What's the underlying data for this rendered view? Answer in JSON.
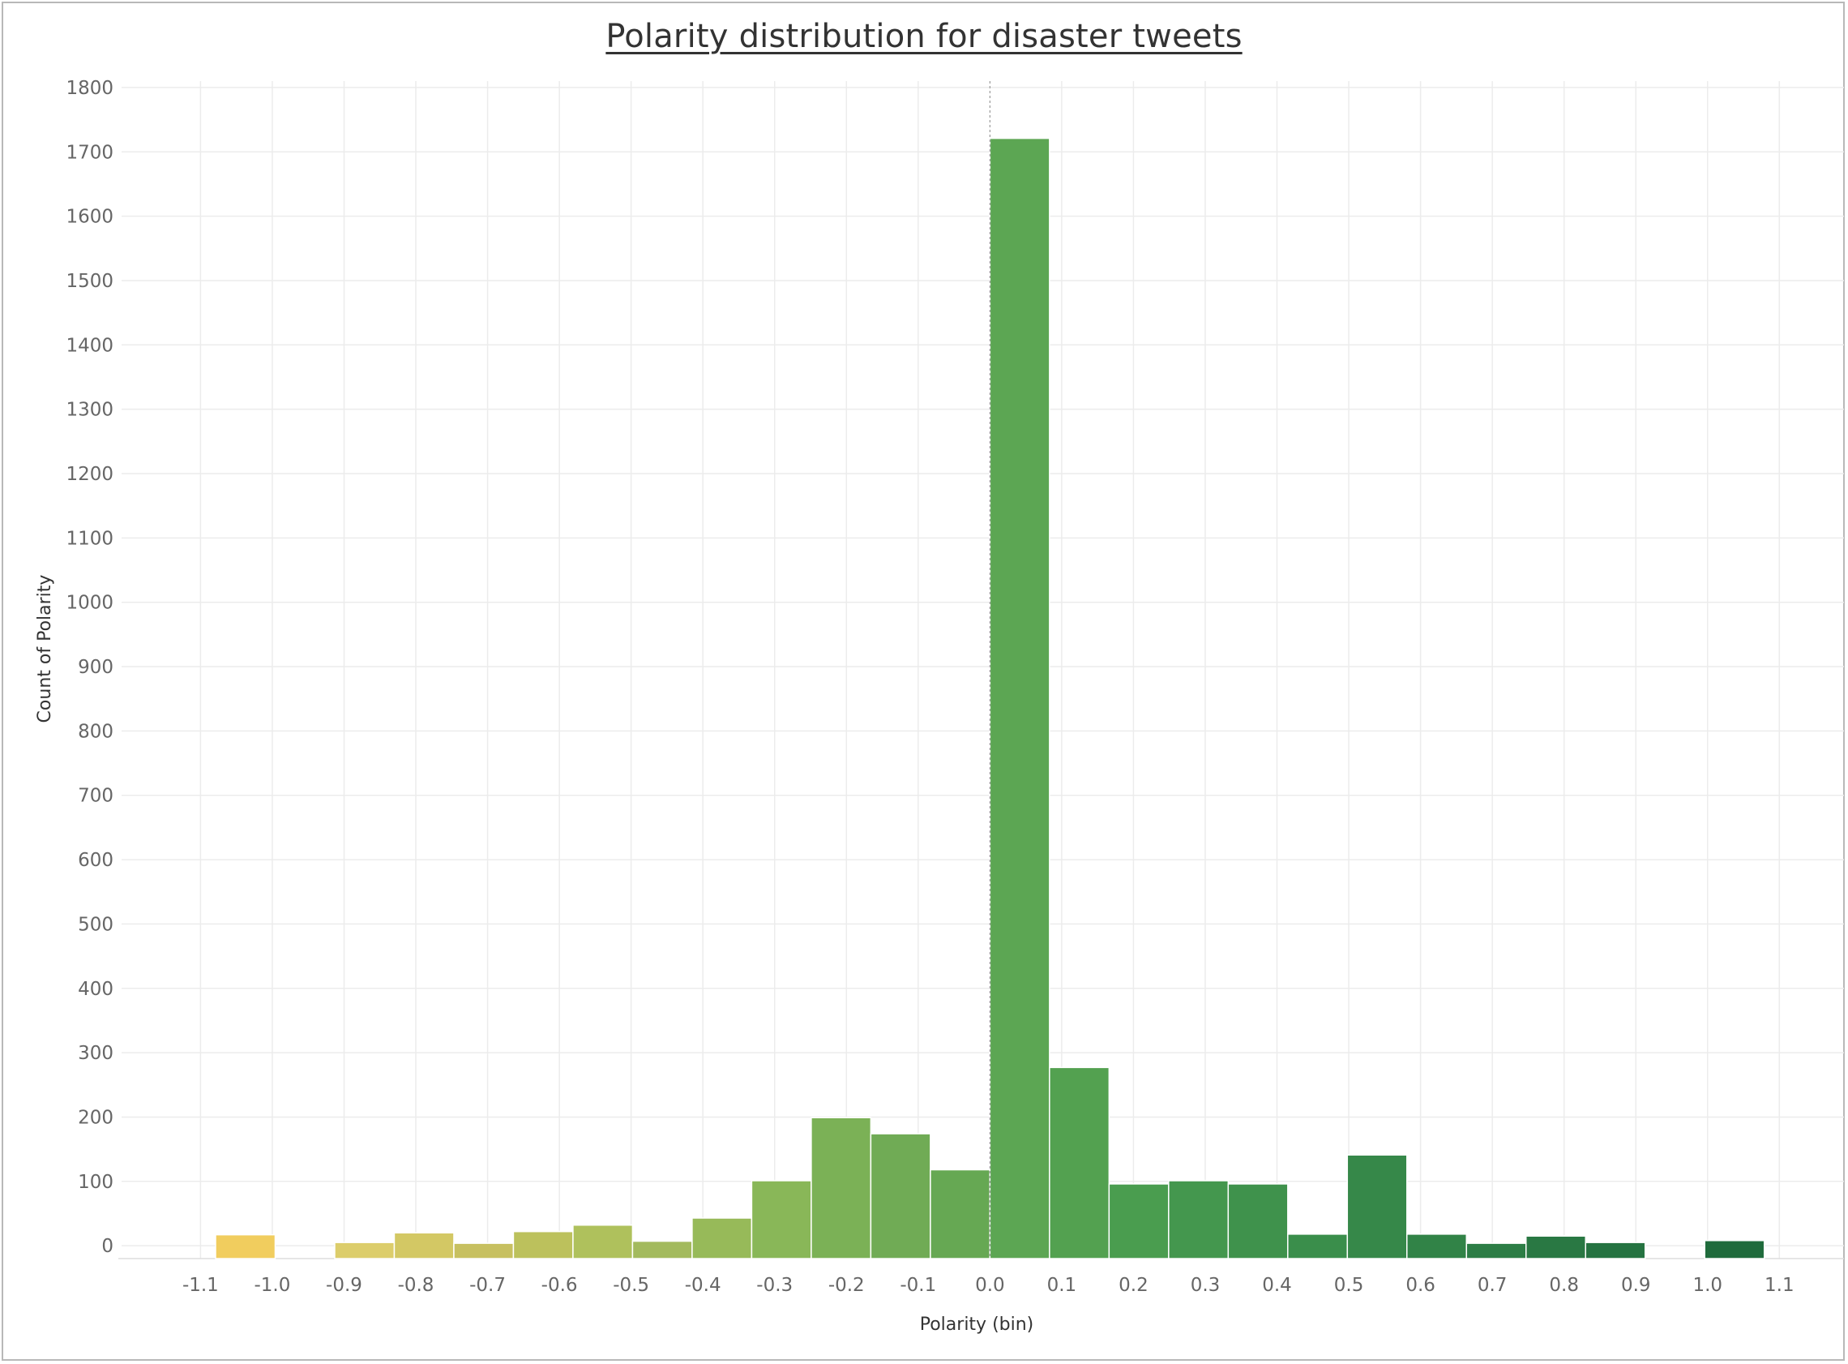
{
  "chart_data": {
    "type": "bar",
    "title": "Polarity distribution for disaster tweets",
    "xlabel": "Polarity (bin)",
    "ylabel": "Count of Polarity",
    "bin_size": 0.083,
    "bins": [
      {
        "x0": -1.079,
        "count": 17,
        "color": "#f1cd5e"
      },
      {
        "x0": -0.913,
        "count": 5,
        "color": "#dccd6b"
      },
      {
        "x0": -0.83,
        "count": 20,
        "color": "#d3c864"
      },
      {
        "x0": -0.747,
        "count": 3,
        "color": "#c7c060"
      },
      {
        "x0": -0.664,
        "count": 22,
        "color": "#bcc15c"
      },
      {
        "x0": -0.581,
        "count": 32,
        "color": "#afc15c"
      },
      {
        "x0": -0.498,
        "count": 7,
        "color": "#a3ba5d"
      },
      {
        "x0": -0.415,
        "count": 43,
        "color": "#97ba59"
      },
      {
        "x0": -0.332,
        "count": 101,
        "color": "#89b758"
      },
      {
        "x0": -0.249,
        "count": 199,
        "color": "#7bb156"
      },
      {
        "x0": -0.166,
        "count": 174,
        "color": "#70ab55"
      },
      {
        "x0": -0.083,
        "count": 118,
        "color": "#66a853"
      },
      {
        "x0": 0.0,
        "count": 1721,
        "color": "#5ca653"
      },
      {
        "x0": 0.083,
        "count": 277,
        "color": "#53a150"
      },
      {
        "x0": 0.166,
        "count": 96,
        "color": "#4a9d4f"
      },
      {
        "x0": 0.249,
        "count": 101,
        "color": "#44974e"
      },
      {
        "x0": 0.332,
        "count": 96,
        "color": "#3f924c"
      },
      {
        "x0": 0.415,
        "count": 18,
        "color": "#3a8e4b"
      },
      {
        "x0": 0.498,
        "count": 141,
        "color": "#368849"
      },
      {
        "x0": 0.581,
        "count": 18,
        "color": "#318347"
      },
      {
        "x0": 0.664,
        "count": 2,
        "color": "#2c7d45"
      },
      {
        "x0": 0.747,
        "count": 15,
        "color": "#297843"
      },
      {
        "x0": 0.83,
        "count": 5,
        "color": "#257341"
      },
      {
        "x0": 0.996,
        "count": 8,
        "color": "#1f6b3c"
      }
    ],
    "x_ticks": [
      "-1.1",
      "-1.0",
      "-0.9",
      "-0.8",
      "-0.7",
      "-0.6",
      "-0.5",
      "-0.4",
      "-0.3",
      "-0.2",
      "-0.1",
      "0.0",
      "0.1",
      "0.2",
      "0.3",
      "0.4",
      "0.5",
      "0.6",
      "0.7",
      "0.8",
      "0.9",
      "1.0",
      "1.1"
    ],
    "y_ticks": [
      "0",
      "100",
      "200",
      "300",
      "400",
      "500",
      "600",
      "700",
      "800",
      "900",
      "1000",
      "1100",
      "1200",
      "1300",
      "1400",
      "1500",
      "1600",
      "1700",
      "1800"
    ],
    "xlim": [
      -1.21,
      1.19
    ],
    "ylim": [
      -20,
      1810
    ],
    "grid": true,
    "legend": "none",
    "colors": {
      "gridline": "#ececec",
      "zero_line": "#9a9a9a",
      "bar_border": "#ffffff"
    }
  }
}
